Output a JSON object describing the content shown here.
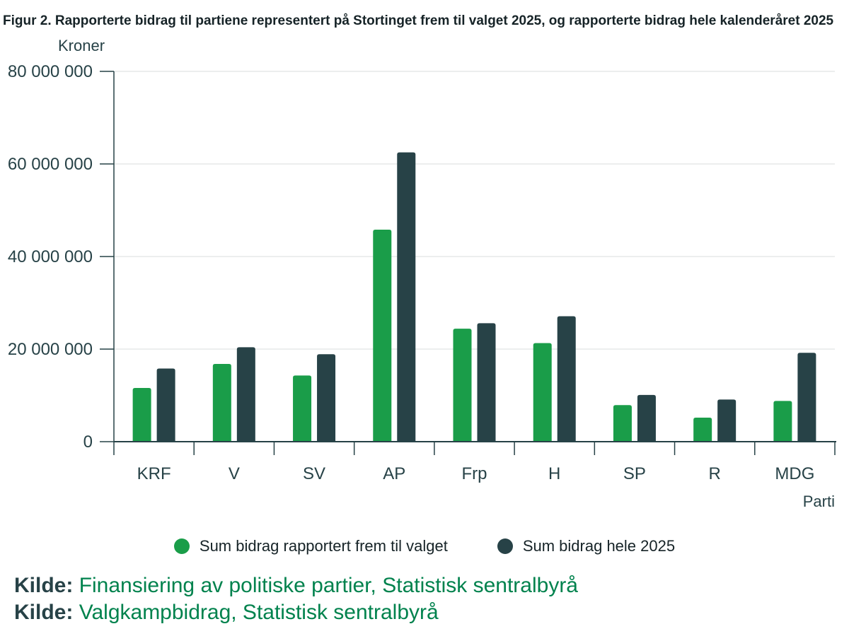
{
  "chart_data": {
    "type": "bar",
    "title": "Figur 2. Rapporterte bidrag til partiene representert på Stortinget frem til valget 2025, og rapporterte bidrag hele kalenderåret 2025",
    "ylabel": "Kroner",
    "xlabel": "Parti",
    "ylim": [
      0,
      80000000
    ],
    "yticks": [
      0,
      20000000,
      40000000,
      60000000,
      80000000
    ],
    "ytick_labels": [
      "0",
      "20 000 000",
      "40 000 000",
      "60 000 000",
      "80 000 000"
    ],
    "grid": true,
    "legend_position": "bottom",
    "categories": [
      "KRF",
      "V",
      "SV",
      "AP",
      "Frp",
      "H",
      "SP",
      "R",
      "MDG"
    ],
    "series": [
      {
        "name": "Sum bidrag rapportert frem til valget",
        "color": "#1a9d49",
        "values": [
          11600000,
          16800000,
          14300000,
          45800000,
          24400000,
          21300000,
          7900000,
          5200000,
          8800000
        ]
      },
      {
        "name": "Sum bidrag hele 2025",
        "color": "#274247",
        "values": [
          15800000,
          20400000,
          18900000,
          62500000,
          25600000,
          27100000,
          10100000,
          9100000,
          19200000
        ]
      }
    ]
  },
  "sources": [
    {
      "label": "Kilde:",
      "text": "Finansiering av politiske partier, Statistisk sentralbyrå"
    },
    {
      "label": "Kilde:",
      "text": "Valgkampbidrag, Statistisk sentralbyrå"
    }
  ]
}
